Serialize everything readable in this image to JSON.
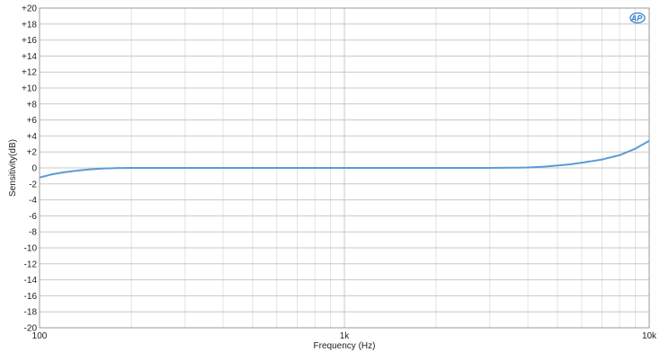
{
  "colors": {
    "series": "#5b9bd5",
    "grid_major": "#c8c8c8",
    "grid_minor": "#e4e4e4",
    "frame": "#9a9a9a",
    "logo": "#2f7fd1"
  },
  "logo": {
    "text": "AP",
    "icon": "ap-logo-icon"
  },
  "chart_data": {
    "type": "line",
    "title": "",
    "xlabel": "Frequency (Hz)",
    "ylabel": "Sensitivity(dB)",
    "x_scale": "log",
    "xlim": [
      100,
      10000
    ],
    "ylim": [
      -20,
      20
    ],
    "grid": true,
    "x_ticks": [
      {
        "value": 100,
        "label": "100"
      },
      {
        "value": 1000,
        "label": "1k"
      },
      {
        "value": 10000,
        "label": "10k"
      }
    ],
    "y_ticks": [
      {
        "value": 20,
        "label": "+20"
      },
      {
        "value": 18,
        "label": "+18"
      },
      {
        "value": 16,
        "label": "+16"
      },
      {
        "value": 14,
        "label": "+14"
      },
      {
        "value": 12,
        "label": "+12"
      },
      {
        "value": 10,
        "label": "+10"
      },
      {
        "value": 8,
        "label": "+8"
      },
      {
        "value": 6,
        "label": "+6"
      },
      {
        "value": 4,
        "label": "+4"
      },
      {
        "value": 2,
        "label": "+2"
      },
      {
        "value": 0,
        "label": "0"
      },
      {
        "value": -2,
        "label": "-2"
      },
      {
        "value": -4,
        "label": "-4"
      },
      {
        "value": -6,
        "label": "-6"
      },
      {
        "value": -8,
        "label": "-8"
      },
      {
        "value": -10,
        "label": "-10"
      },
      {
        "value": -12,
        "label": "-12"
      },
      {
        "value": -14,
        "label": "-14"
      },
      {
        "value": -16,
        "label": "-16"
      },
      {
        "value": -18,
        "label": "-18"
      },
      {
        "value": -20,
        "label": "-20"
      }
    ],
    "series": [
      {
        "x": [
          100,
          110,
          120,
          130,
          140,
          150,
          160,
          180,
          200,
          300,
          500,
          1000,
          2000,
          3000,
          4000,
          4500,
          5000,
          5500,
          6000,
          7000,
          8000,
          9000,
          10000
        ],
        "y": [
          -1.2,
          -0.8,
          -0.55,
          -0.38,
          -0.25,
          -0.15,
          -0.08,
          -0.02,
          0.0,
          0.0,
          0.0,
          0.0,
          0.0,
          0.0,
          0.05,
          0.15,
          0.3,
          0.45,
          0.65,
          1.05,
          1.6,
          2.4,
          3.4
        ]
      }
    ]
  }
}
